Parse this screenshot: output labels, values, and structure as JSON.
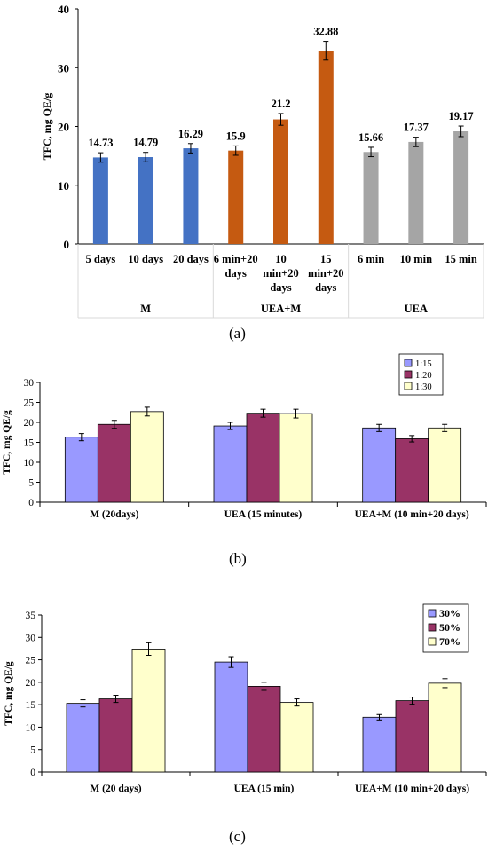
{
  "chart_data": [
    {
      "type": "bar",
      "panel": "(a)",
      "ylabel": "TFC, mg QE/g",
      "ylim": [
        0,
        40
      ],
      "yticks": [
        0,
        10,
        20,
        30,
        40
      ],
      "categories": [
        "5 days",
        "10 days",
        "20 days",
        "6 min+20 days",
        "10 min+20 days",
        "15 min+20 days",
        "6 min",
        "10 min",
        "15 min"
      ],
      "category_lines": [
        [
          "5 days"
        ],
        [
          "10 days"
        ],
        [
          "20 days"
        ],
        [
          "6 min+20",
          "days"
        ],
        [
          "10",
          "min+20",
          "days"
        ],
        [
          "15",
          "min+20",
          "days"
        ],
        [
          "6 min"
        ],
        [
          "10 min"
        ],
        [
          "15 min"
        ]
      ],
      "values": [
        14.73,
        14.79,
        16.29,
        15.9,
        21.2,
        32.88,
        15.66,
        17.37,
        19.17
      ],
      "value_labels": [
        "14.73",
        "14.79",
        "16.29",
        "15.9",
        "21.2",
        "32.88",
        "15.66",
        "17.37",
        "19.17"
      ],
      "errors": [
        0.8,
        0.8,
        0.8,
        0.8,
        1.0,
        1.6,
        0.8,
        0.8,
        0.9
      ],
      "colors": [
        "#4472c4",
        "#4472c4",
        "#4472c4",
        "#c55a11",
        "#c55a11",
        "#c55a11",
        "#a5a5a5",
        "#a5a5a5",
        "#a5a5a5"
      ],
      "groups": [
        {
          "label": "M",
          "count": 3
        },
        {
          "label": "UEA+M",
          "count": 3
        },
        {
          "label": "UEA",
          "count": 3
        }
      ]
    },
    {
      "type": "bar",
      "panel": "(b)",
      "ylabel": "TFC, mg QE/g",
      "ylim": [
        0,
        30
      ],
      "yticks": [
        0,
        5,
        10,
        15,
        20,
        25,
        30
      ],
      "categories": [
        "M (20days)",
        "UEA (15 minutes)",
        "UEA+M (10 min+20 days)"
      ],
      "legend_position": "top-right",
      "series": [
        {
          "name": "1:15",
          "color": "#9999ff",
          "values": [
            16.3,
            19.1,
            18.6
          ],
          "errors": [
            0.9,
            0.9,
            0.9
          ]
        },
        {
          "name": "1:20",
          "color": "#993366",
          "values": [
            19.5,
            22.3,
            15.9
          ],
          "errors": [
            1.0,
            1.0,
            0.8
          ]
        },
        {
          "name": "1:30",
          "color": "#ffffcc",
          "values": [
            22.7,
            22.2,
            18.6
          ],
          "errors": [
            1.1,
            1.1,
            0.9
          ]
        }
      ]
    },
    {
      "type": "bar",
      "panel": "(c)",
      "ylabel": "TFC, mg QE/g",
      "ylim": [
        0,
        35
      ],
      "yticks": [
        0,
        5,
        10,
        15,
        20,
        25,
        30,
        35
      ],
      "categories": [
        "M (20 days)",
        "UEA (15 min)",
        "UEA+M (10 min+20 days)"
      ],
      "legend_position": "top-right",
      "series": [
        {
          "name": "30%",
          "color": "#9999ff",
          "values": [
            15.3,
            24.5,
            12.2
          ],
          "errors": [
            0.8,
            1.2,
            0.6
          ]
        },
        {
          "name": "50%",
          "color": "#993366",
          "values": [
            16.3,
            19.1,
            15.9
          ],
          "errors": [
            0.8,
            0.9,
            0.8
          ]
        },
        {
          "name": "70%",
          "color": "#ffffcc",
          "values": [
            27.4,
            15.5,
            19.8
          ],
          "errors": [
            1.4,
            0.8,
            1.0
          ]
        }
      ]
    }
  ],
  "captions": [
    "(a)",
    "(b)",
    "(c)"
  ]
}
